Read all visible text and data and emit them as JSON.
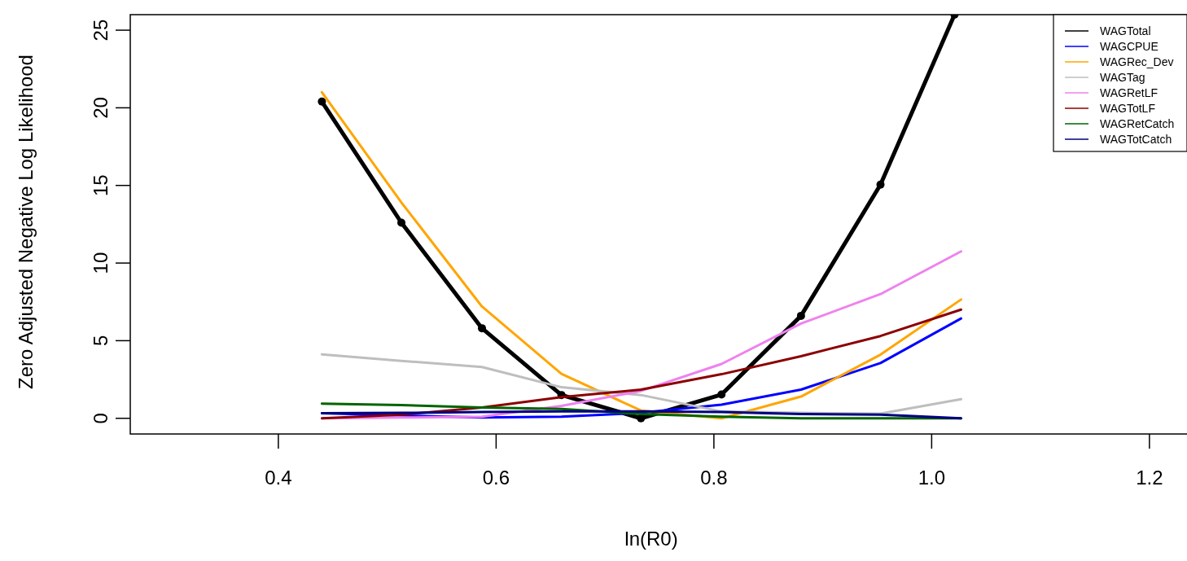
{
  "chart_data": {
    "type": "line",
    "xlabel": "ln(R0)",
    "ylabel": "Zero Adjusted Negative Log Likelihood",
    "x": [
      0.44,
      0.513,
      0.587,
      0.66,
      0.733,
      0.807,
      0.88,
      0.953,
      1.027
    ],
    "xlim": [
      0.264,
      1.236
    ],
    "xticks": [
      0.4,
      0.6,
      0.8,
      {
        "value": 1,
        "label": "1.0"
      },
      1.2
    ],
    "ylim": [
      -1.01,
      26
    ],
    "yticks": [
      0,
      5,
      10,
      15,
      20,
      25
    ],
    "grid": false,
    "legend": "top right",
    "line_style": "solid",
    "series": [
      {
        "name": "WAGTotal",
        "color": "#000000",
        "marker": "circle",
        "x": [
          0.44,
          0.513,
          0.587,
          0.66,
          0.733,
          0.807,
          0.88,
          0.953,
          1.021
        ],
        "values": [
          20.4,
          12.6,
          5.8,
          1.5,
          0,
          1.53,
          6.6,
          15.05,
          26
        ]
      },
      {
        "name": "WAGCPUE",
        "color": "#0000ff",
        "marker": "none",
        "values": [
          0.33,
          0.18,
          0.05,
          0.1,
          0.35,
          0.88,
          1.85,
          3.56,
          6.43
        ]
      },
      {
        "name": "WAGRec_Dev",
        "color": "#ffa500",
        "marker": "none",
        "values": [
          21.0,
          13.9,
          7.2,
          2.86,
          0.5,
          0.0,
          1.4,
          4.1,
          7.65
        ]
      },
      {
        "name": "WAGTag",
        "color": "#bebebe",
        "marker": "none",
        "values": [
          4.12,
          3.7,
          3.3,
          2.0,
          1.5,
          0.44,
          0.35,
          0.3,
          1.23
        ]
      },
      {
        "name": "WAGRetLF",
        "color": "#ee82ee",
        "marker": "none",
        "values": [
          0.0,
          0.05,
          0.1,
          0.8,
          1.76,
          3.5,
          6.1,
          8.0,
          10.75
        ]
      },
      {
        "name": "WAGTotLF",
        "color": "#8b0000",
        "marker": "none",
        "values": [
          0.0,
          0.23,
          0.7,
          1.36,
          1.85,
          2.84,
          4.0,
          5.3,
          7.0
        ]
      },
      {
        "name": "WAGRetCatch",
        "color": "#006400",
        "marker": "none",
        "values": [
          0.95,
          0.85,
          0.7,
          0.6,
          0.27,
          0.1,
          0.0,
          0.0,
          0.0
        ]
      },
      {
        "name": "WAGTotCatch",
        "color": "#000080",
        "marker": "none",
        "values": [
          0.33,
          0.35,
          0.4,
          0.45,
          0.44,
          0.4,
          0.27,
          0.24,
          0.0
        ]
      }
    ]
  }
}
